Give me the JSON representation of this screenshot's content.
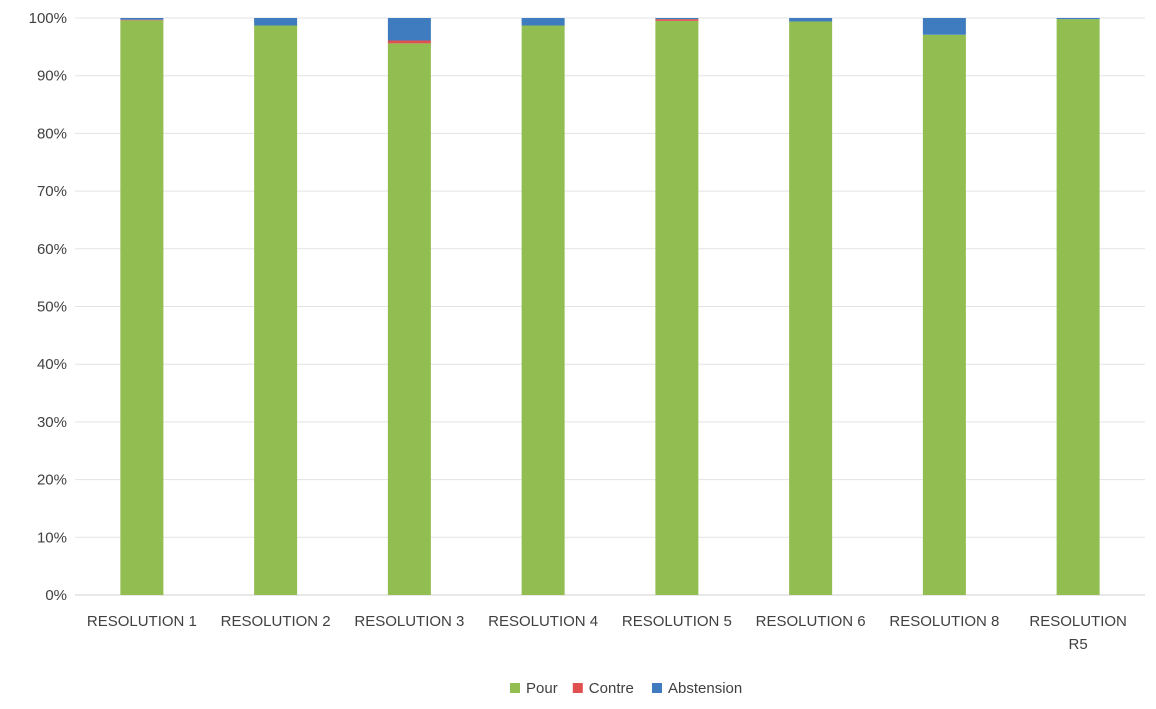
{
  "chart_data": {
    "type": "bar",
    "stacked": true,
    "percent_stacked": true,
    "categories": [
      [
        "RESOLUTION 1"
      ],
      [
        "RESOLUTION 2"
      ],
      [
        "RESOLUTION 3"
      ],
      [
        "RESOLUTION 4"
      ],
      [
        "RESOLUTION 5"
      ],
      [
        "RESOLUTION 6"
      ],
      [
        "RESOLUTION 8"
      ],
      [
        "RESOLUTION",
        "R5"
      ]
    ],
    "series": [
      {
        "name": "Pour",
        "color": "#92bd50",
        "values": [
          99.6,
          98.7,
          95.6,
          98.7,
          99.5,
          99.4,
          97.1,
          99.8
        ]
      },
      {
        "name": "Contre",
        "color": "#e15050",
        "values": [
          0.1,
          0.0,
          0.5,
          0.0,
          0.3,
          0.0,
          0.0,
          0.0
        ]
      },
      {
        "name": "Abstension",
        "color": "#3f7cbf",
        "values": [
          0.3,
          1.3,
          3.9,
          1.3,
          0.2,
          0.6,
          2.9,
          0.2
        ]
      }
    ],
    "y_ticks": [
      "0%",
      "10%",
      "20%",
      "30%",
      "40%",
      "50%",
      "60%",
      "70%",
      "80%",
      "90%",
      "100%"
    ],
    "ylim": [
      0,
      100
    ],
    "grid": true,
    "legend_position": "bottom",
    "title": "",
    "xlabel": "",
    "ylabel": ""
  }
}
